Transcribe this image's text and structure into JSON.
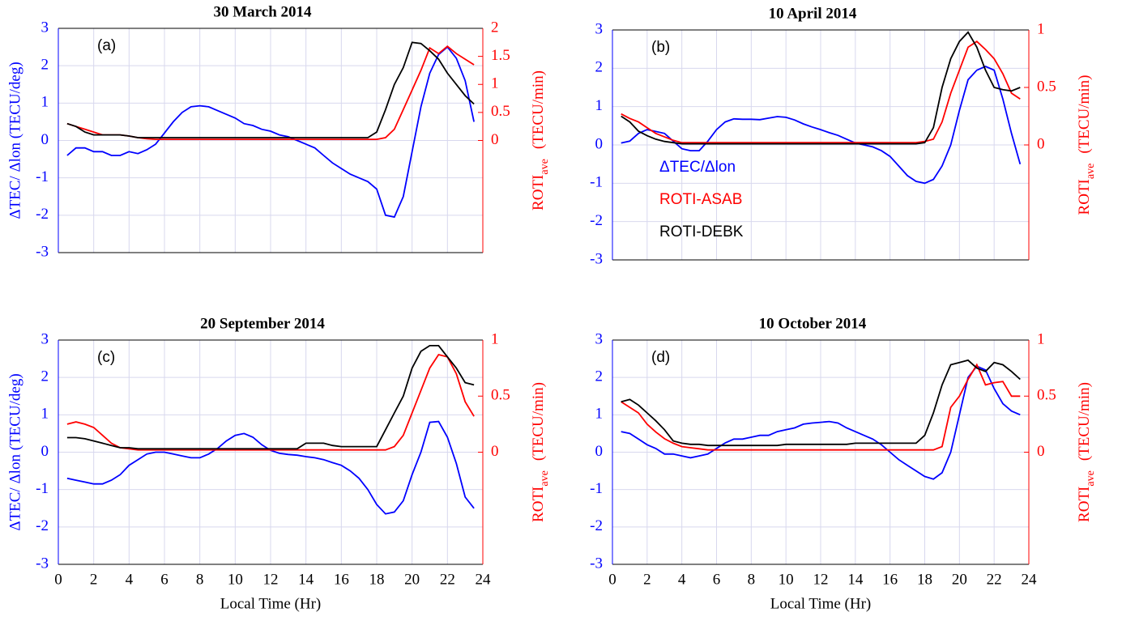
{
  "chart_data": [
    {
      "type": "line",
      "title": "30 March 2014",
      "annotation": "(a)",
      "ylabel": "ΔTEC/ Δlon (TECU/deg)",
      "y2label": "ROTI",
      "y2label_sub": "ave",
      "y2label_unit": "(TECU/min)",
      "xlim": [
        0,
        24
      ],
      "xticks": [
        0,
        2,
        4,
        6,
        8,
        10,
        12,
        14,
        16,
        18,
        20,
        22,
        24
      ],
      "ylim": [
        -3,
        3
      ],
      "yticks": [
        -3,
        -2,
        -1,
        0,
        1,
        2,
        3
      ],
      "y2lim": [
        -2,
        2
      ],
      "y2ticks": [
        0,
        0.5,
        1,
        1.5,
        2
      ],
      "grid": true,
      "x": [
        0.5,
        1,
        1.5,
        2,
        2.5,
        3,
        3.5,
        4,
        4.5,
        5,
        5.5,
        6,
        6.5,
        7,
        7.5,
        8,
        8.5,
        9,
        9.5,
        10,
        10.5,
        11,
        11.5,
        12,
        12.5,
        13,
        13.5,
        14,
        14.5,
        15,
        15.5,
        16,
        16.5,
        17,
        17.5,
        18,
        18.5,
        19,
        19.5,
        20,
        20.5,
        21,
        21.5,
        22,
        22.5,
        23,
        23.5
      ],
      "series": [
        {
          "color": "#0000ff",
          "axis": "y",
          "values": [
            -0.4,
            -0.2,
            -0.2,
            -0.3,
            -0.3,
            -0.4,
            -0.4,
            -0.3,
            -0.35,
            -0.25,
            -0.1,
            0.2,
            0.5,
            0.75,
            0.9,
            0.93,
            0.9,
            0.8,
            0.7,
            0.6,
            0.45,
            0.4,
            0.3,
            0.25,
            0.15,
            0.1,
            0,
            -0.1,
            -0.2,
            -0.4,
            -0.6,
            -0.75,
            -0.9,
            -1.0,
            -1.1,
            -1.3,
            -2.0,
            -2.05,
            -1.5,
            -0.3,
            0.9,
            1.8,
            2.3,
            2.5,
            2.2,
            1.6,
            0.5
          ]
        },
        {
          "color": "#ff0000",
          "axis": "y2",
          "values": [
            0.3,
            0.25,
            0.2,
            0.15,
            0.1,
            0.1,
            0.1,
            0.08,
            0.05,
            0.03,
            0.02,
            0.02,
            0.02,
            0.02,
            0.02,
            0.02,
            0.02,
            0.02,
            0.02,
            0.02,
            0.02,
            0.02,
            0.02,
            0.02,
            0.02,
            0.02,
            0.02,
            0.02,
            0.02,
            0.02,
            0.02,
            0.02,
            0.02,
            0.02,
            0.02,
            0.02,
            0.05,
            0.2,
            0.55,
            0.9,
            1.25,
            1.65,
            1.55,
            1.68,
            1.55,
            1.45,
            1.35
          ]
        },
        {
          "color": "#000000",
          "axis": "y2",
          "values": [
            0.3,
            0.25,
            0.15,
            0.1,
            0.1,
            0.1,
            0.1,
            0.08,
            0.05,
            0.05,
            0.05,
            0.05,
            0.05,
            0.05,
            0.05,
            0.05,
            0.05,
            0.05,
            0.05,
            0.05,
            0.05,
            0.05,
            0.05,
            0.05,
            0.05,
            0.05,
            0.05,
            0.05,
            0.05,
            0.05,
            0.05,
            0.05,
            0.05,
            0.05,
            0.05,
            0.15,
            0.55,
            1.0,
            1.3,
            1.75,
            1.73,
            1.6,
            1.45,
            1.2,
            1.0,
            0.8,
            0.65
          ]
        }
      ]
    },
    {
      "type": "line",
      "title": "10 April 2014",
      "annotation": "(b)",
      "y2label": "ROTI",
      "y2label_sub": "ave",
      "y2label_unit": "(TECU/min)",
      "xlim": [
        0,
        24
      ],
      "xticks": [
        0,
        2,
        4,
        6,
        8,
        10,
        12,
        14,
        16,
        18,
        20,
        22,
        24
      ],
      "ylim": [
        -3,
        3
      ],
      "yticks": [
        -3,
        -2,
        -1,
        0,
        1,
        2,
        3
      ],
      "y2lim": [
        -1,
        1
      ],
      "y2ticks": [
        0,
        0.5,
        1
      ],
      "grid": true,
      "legend": "center-left",
      "x": [
        0.5,
        1,
        1.5,
        2,
        2.5,
        3,
        3.5,
        4,
        4.5,
        5,
        5.5,
        6,
        6.5,
        7,
        7.5,
        8,
        8.5,
        9,
        9.5,
        10,
        10.5,
        11,
        11.5,
        12,
        12.5,
        13,
        13.5,
        14,
        14.5,
        15,
        15.5,
        16,
        16.5,
        17,
        17.5,
        18,
        18.5,
        19,
        19.5,
        20,
        20.5,
        21,
        21.5,
        22,
        22.5,
        23,
        23.5
      ],
      "series": [
        {
          "name": "ΔTEC/Δlon",
          "color": "#0000ff",
          "axis": "y",
          "values": [
            0.05,
            0.1,
            0.3,
            0.4,
            0.35,
            0.3,
            0.1,
            -0.1,
            -0.15,
            -0.15,
            0.1,
            0.4,
            0.6,
            0.68,
            0.67,
            0.67,
            0.66,
            0.7,
            0.74,
            0.72,
            0.65,
            0.55,
            0.47,
            0.4,
            0.32,
            0.25,
            0.15,
            0.05,
            0,
            -0.05,
            -0.15,
            -0.3,
            -0.55,
            -0.8,
            -0.95,
            -1.0,
            -0.9,
            -0.55,
            0,
            0.9,
            1.7,
            1.95,
            2.05,
            1.95,
            1.2,
            0.3,
            -0.5
          ]
        },
        {
          "name": "ROTI-ASAB",
          "color": "#ff0000",
          "axis": "y2",
          "values": [
            0.27,
            0.23,
            0.2,
            0.15,
            0.1,
            0.07,
            0.04,
            0.02,
            0.02,
            0.02,
            0.02,
            0.02,
            0.02,
            0.02,
            0.02,
            0.02,
            0.02,
            0.02,
            0.02,
            0.02,
            0.02,
            0.02,
            0.02,
            0.02,
            0.02,
            0.02,
            0.02,
            0.02,
            0.02,
            0.02,
            0.02,
            0.02,
            0.02,
            0.02,
            0.02,
            0.03,
            0.05,
            0.2,
            0.45,
            0.65,
            0.85,
            0.9,
            0.83,
            0.75,
            0.62,
            0.45,
            0.4
          ]
        },
        {
          "name": "ROTI-DEBK",
          "color": "#000000",
          "axis": "y2",
          "values": [
            0.25,
            0.2,
            0.12,
            0.08,
            0.05,
            0.03,
            0.02,
            0.01,
            0.01,
            0.01,
            0.01,
            0.01,
            0.01,
            0.01,
            0.01,
            0.01,
            0.01,
            0.01,
            0.01,
            0.01,
            0.01,
            0.01,
            0.01,
            0.01,
            0.01,
            0.01,
            0.01,
            0.01,
            0.01,
            0.01,
            0.01,
            0.01,
            0.01,
            0.01,
            0.01,
            0.02,
            0.15,
            0.5,
            0.75,
            0.9,
            0.98,
            0.85,
            0.65,
            0.5,
            0.48,
            0.47,
            0.5
          ]
        }
      ]
    },
    {
      "type": "line",
      "title": "20 September 2014",
      "annotation": "(c)",
      "xlabel": "Local Time (Hr)",
      "ylabel": "ΔTEC/ Δlon (TECU/deg)",
      "y2label": "ROTI",
      "y2label_sub": "ave",
      "y2label_unit": "(TECU/min)",
      "xlim": [
        0,
        24
      ],
      "xticks": [
        0,
        2,
        4,
        6,
        8,
        10,
        12,
        14,
        16,
        18,
        20,
        22,
        24
      ],
      "ylim": [
        -3,
        3
      ],
      "yticks": [
        -3,
        -2,
        -1,
        0,
        1,
        2,
        3
      ],
      "y2lim": [
        -1,
        1
      ],
      "y2ticks": [
        0,
        0.5,
        1
      ],
      "grid": true,
      "x": [
        0.5,
        1,
        1.5,
        2,
        2.5,
        3,
        3.5,
        4,
        4.5,
        5,
        5.5,
        6,
        6.5,
        7,
        7.5,
        8,
        8.5,
        9,
        9.5,
        10,
        10.5,
        11,
        11.5,
        12,
        12.5,
        13,
        13.5,
        14,
        14.5,
        15,
        15.5,
        16,
        16.5,
        17,
        17.5,
        18,
        18.5,
        19,
        19.5,
        20,
        20.5,
        21,
        21.5,
        22,
        22.5,
        23,
        23.5
      ],
      "series": [
        {
          "color": "#0000ff",
          "axis": "y",
          "values": [
            -0.7,
            -0.75,
            -0.8,
            -0.85,
            -0.85,
            -0.75,
            -0.6,
            -0.35,
            -0.2,
            -0.05,
            0,
            0,
            -0.05,
            -0.1,
            -0.15,
            -0.15,
            -0.05,
            0.1,
            0.3,
            0.45,
            0.5,
            0.4,
            0.2,
            0.05,
            -0.03,
            -0.06,
            -0.08,
            -0.12,
            -0.15,
            -0.2,
            -0.28,
            -0.35,
            -0.5,
            -0.7,
            -1.0,
            -1.4,
            -1.65,
            -1.6,
            -1.3,
            -0.6,
            0,
            0.8,
            0.82,
            0.4,
            -0.3,
            -1.2,
            -1.5
          ]
        },
        {
          "color": "#ff0000",
          "axis": "y2",
          "values": [
            0.25,
            0.27,
            0.25,
            0.22,
            0.15,
            0.08,
            0.04,
            0.03,
            0.02,
            0.02,
            0.02,
            0.02,
            0.02,
            0.02,
            0.02,
            0.02,
            0.02,
            0.02,
            0.02,
            0.02,
            0.02,
            0.02,
            0.02,
            0.02,
            0.02,
            0.02,
            0.02,
            0.02,
            0.02,
            0.02,
            0.02,
            0.02,
            0.02,
            0.02,
            0.02,
            0.02,
            0.02,
            0.05,
            0.15,
            0.35,
            0.55,
            0.75,
            0.87,
            0.85,
            0.7,
            0.45,
            0.32
          ]
        },
        {
          "color": "#000000",
          "axis": "y2",
          "values": [
            0.13,
            0.13,
            0.12,
            0.1,
            0.08,
            0.06,
            0.04,
            0.04,
            0.03,
            0.03,
            0.03,
            0.03,
            0.03,
            0.03,
            0.03,
            0.03,
            0.03,
            0.03,
            0.03,
            0.03,
            0.03,
            0.03,
            0.03,
            0.03,
            0.03,
            0.03,
            0.03,
            0.08,
            0.08,
            0.08,
            0.06,
            0.05,
            0.05,
            0.05,
            0.05,
            0.05,
            0.2,
            0.35,
            0.5,
            0.75,
            0.9,
            0.95,
            0.95,
            0.85,
            0.75,
            0.62,
            0.6
          ]
        }
      ]
    },
    {
      "type": "line",
      "title": "10 October 2014",
      "annotation": "(d)",
      "xlabel": "Local Time (Hr)",
      "y2label": "ROTI",
      "y2label_sub": "ave",
      "y2label_unit": "(TECU/min)",
      "xlim": [
        0,
        24
      ],
      "xticks": [
        0,
        2,
        4,
        6,
        8,
        10,
        12,
        14,
        16,
        18,
        20,
        22,
        24
      ],
      "ylim": [
        -3,
        3
      ],
      "yticks": [
        -3,
        -2,
        -1,
        0,
        1,
        2,
        3
      ],
      "y2lim": [
        -1,
        1
      ],
      "y2ticks": [
        0,
        0.5,
        1
      ],
      "grid": true,
      "x": [
        0.5,
        1,
        1.5,
        2,
        2.5,
        3,
        3.5,
        4,
        4.5,
        5,
        5.5,
        6,
        6.5,
        7,
        7.5,
        8,
        8.5,
        9,
        9.5,
        10,
        10.5,
        11,
        11.5,
        12,
        12.5,
        13,
        13.5,
        14,
        14.5,
        15,
        15.5,
        16,
        16.5,
        17,
        17.5,
        18,
        18.5,
        19,
        19.5,
        20,
        20.5,
        21,
        21.5,
        22,
        22.5,
        23,
        23.5
      ],
      "series": [
        {
          "color": "#0000ff",
          "axis": "y",
          "values": [
            0.55,
            0.5,
            0.35,
            0.2,
            0.1,
            -0.05,
            -0.05,
            -0.1,
            -0.15,
            -0.1,
            -0.05,
            0.1,
            0.25,
            0.35,
            0.35,
            0.4,
            0.45,
            0.45,
            0.55,
            0.6,
            0.65,
            0.75,
            0.78,
            0.8,
            0.82,
            0.78,
            0.65,
            0.55,
            0.45,
            0.35,
            0.2,
            0,
            -0.2,
            -0.35,
            -0.5,
            -0.65,
            -0.72,
            -0.55,
            0,
            1.0,
            2.0,
            2.3,
            2.2,
            1.7,
            1.3,
            1.1,
            1.0
          ]
        },
        {
          "color": "#ff0000",
          "axis": "y2",
          "values": [
            0.45,
            0.4,
            0.35,
            0.25,
            0.18,
            0.12,
            0.08,
            0.05,
            0.04,
            0.03,
            0.02,
            0.02,
            0.02,
            0.02,
            0.02,
            0.02,
            0.02,
            0.02,
            0.02,
            0.02,
            0.02,
            0.02,
            0.02,
            0.02,
            0.02,
            0.02,
            0.02,
            0.02,
            0.02,
            0.02,
            0.02,
            0.02,
            0.02,
            0.02,
            0.02,
            0.02,
            0.02,
            0.05,
            0.4,
            0.5,
            0.65,
            0.78,
            0.6,
            0.62,
            0.63,
            0.5,
            0.5
          ]
        },
        {
          "color": "#000000",
          "axis": "y2",
          "values": [
            0.45,
            0.47,
            0.42,
            0.35,
            0.28,
            0.2,
            0.1,
            0.08,
            0.07,
            0.07,
            0.06,
            0.06,
            0.06,
            0.06,
            0.06,
            0.06,
            0.06,
            0.06,
            0.06,
            0.07,
            0.07,
            0.07,
            0.07,
            0.07,
            0.07,
            0.07,
            0.07,
            0.08,
            0.08,
            0.08,
            0.08,
            0.08,
            0.08,
            0.08,
            0.08,
            0.15,
            0.35,
            0.6,
            0.78,
            0.8,
            0.82,
            0.75,
            0.72,
            0.8,
            0.78,
            0.72,
            0.65
          ]
        }
      ]
    }
  ]
}
